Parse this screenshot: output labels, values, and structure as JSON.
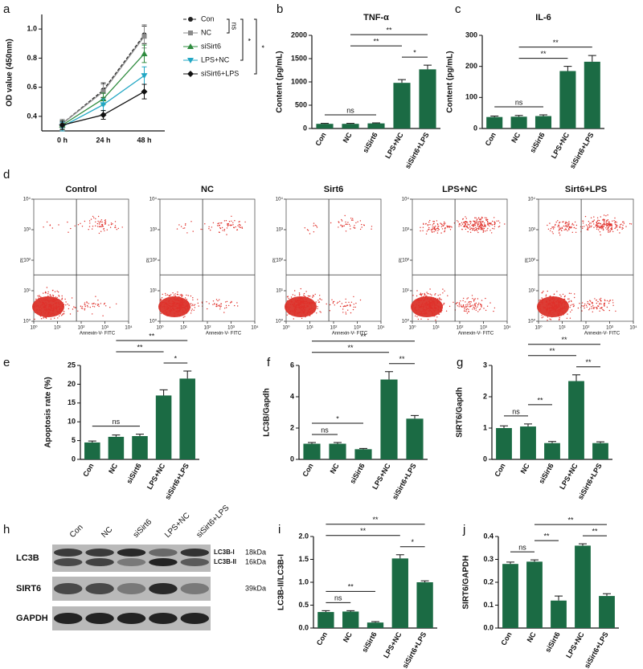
{
  "chart_data": [
    {
      "panel": "a",
      "type": "line",
      "categories": [
        "0 h",
        "24 h",
        "48 h"
      ],
      "ylabel": "OD value (450nm)",
      "ylim": [
        0.3,
        1.1
      ],
      "yticks": [
        0.4,
        0.6,
        0.8,
        {
          "value": 1,
          "label": "1.0"
        }
      ],
      "series": [
        {
          "name": "Con",
          "color": "#222222",
          "marker": "circle",
          "dashed": true,
          "values": [
            0.35,
            0.58,
            0.96
          ],
          "errors": [
            0.03,
            0.05,
            0.06
          ]
        },
        {
          "name": "NC",
          "color": "#8a8a8a",
          "marker": "square",
          "dashed": false,
          "values": [
            0.35,
            0.57,
            0.95
          ],
          "errors": [
            0.03,
            0.05,
            0.08
          ]
        },
        {
          "name": "siSirt6",
          "color": "#2e8b3e",
          "marker": "triangle",
          "dashed": false,
          "values": [
            0.34,
            0.52,
            0.83
          ],
          "errors": [
            0.03,
            0.04,
            0.06
          ]
        },
        {
          "name": "LPS+NC",
          "color": "#22a7c4",
          "marker": "triangle-down",
          "dashed": false,
          "values": [
            0.33,
            0.48,
            0.68
          ],
          "errors": [
            0.03,
            0.04,
            0.06
          ]
        },
        {
          "name": "siSirt6+LPS",
          "color": "#111111",
          "marker": "diamond",
          "dashed": false,
          "values": [
            0.34,
            0.41,
            0.57
          ],
          "errors": [
            0.03,
            0.03,
            0.05
          ]
        }
      ],
      "legend_annotations": [
        {
          "pair": [
            "Con",
            "NC"
          ],
          "label": "ns"
        },
        {
          "pair": [
            "Con",
            "LPS+NC"
          ],
          "label": "*"
        },
        {
          "pair": [
            "Con",
            "siSirt6+LPS"
          ],
          "label": "*"
        }
      ]
    },
    {
      "panel": "b",
      "type": "bar",
      "title": "TNF-α",
      "ylabel": "Content (pg/mL)",
      "color": "#1b6b44",
      "categories": [
        "Con",
        "NC",
        "siSirt6",
        "LPS+NC",
        "siSirt6+LPS"
      ],
      "values": [
        100,
        100,
        110,
        980,
        1270
      ],
      "errors": [
        10,
        10,
        10,
        70,
        90
      ],
      "ylim": [
        0,
        2000
      ],
      "yticks": [
        0,
        500,
        1000,
        1500,
        2000
      ],
      "comparisons": [
        {
          "pair": [
            "Con",
            "siSirt6"
          ],
          "label": "ns"
        },
        {
          "pair": [
            "LPS+NC",
            "siSirt6+LPS"
          ],
          "label": "*"
        },
        {
          "pair": [
            "NC",
            "LPS+NC"
          ],
          "label": "**"
        },
        {
          "pair": [
            "NC",
            "siSirt6+LPS"
          ],
          "label": "**"
        }
      ]
    },
    {
      "panel": "c",
      "type": "bar",
      "title": "IL-6",
      "ylabel": "Content (pg/mL)",
      "color": "#1b6b44",
      "categories": [
        "Con",
        "NC",
        "siSirt6",
        "LPS+NC",
        "siSirt6+LPS"
      ],
      "values": [
        37,
        38,
        40,
        185,
        215
      ],
      "errors": [
        3,
        4,
        4,
        15,
        20
      ],
      "ylim": [
        0,
        300
      ],
      "yticks": [
        0,
        100,
        200,
        300
      ],
      "comparisons": [
        {
          "pair": [
            "Con",
            "siSirt6"
          ],
          "label": "ns"
        },
        {
          "pair": [
            "NC",
            "LPS+NC"
          ],
          "label": "**"
        },
        {
          "pair": [
            "NC",
            "siSirt6+LPS"
          ],
          "label": "**"
        }
      ]
    },
    {
      "panel": "d",
      "type": "flow",
      "titles": [
        "Control",
        "NC",
        "Sirt6",
        "LPS+NC",
        "Sirt6+LPS"
      ],
      "xlabel": "Annexin-V- FITC",
      "ylabel": "PI",
      "log": true,
      "xlim": [
        1,
        10000
      ],
      "ylim": [
        1,
        10000
      ],
      "xticks": [
        {
          "value": 1,
          "label": "10⁰"
        },
        {
          "value": 10,
          "label": "10¹"
        },
        {
          "value": 100,
          "label": "10²"
        },
        {
          "value": 1000,
          "label": "10³"
        },
        {
          "value": 10000,
          "label": "10⁴"
        }
      ],
      "yticks": [
        {
          "value": 1,
          "label": "10⁰"
        },
        {
          "value": 10,
          "label": "10¹"
        },
        {
          "value": 100,
          "label": "10²"
        },
        {
          "value": 1000,
          "label": "10³"
        },
        {
          "value": 10000,
          "label": "10⁴"
        }
      ]
    },
    {
      "panel": "e",
      "type": "bar",
      "ylabel": "Apoptosis rate (%)",
      "color": "#1b6b44",
      "categories": [
        "Con",
        "NC",
        "siSirt6",
        "LPS+NC",
        "siSirt6+LPS"
      ],
      "values": [
        4.5,
        6,
        6.2,
        17,
        21.5
      ],
      "errors": [
        0.4,
        0.5,
        0.5,
        1.5,
        2
      ],
      "ylim": [
        0,
        25
      ],
      "yticks": [
        0,
        5,
        10,
        15,
        20,
        25
      ],
      "comparisons": [
        {
          "pair": [
            "Con",
            "siSirt6"
          ],
          "label": "ns"
        },
        {
          "pair": [
            "LPS+NC",
            "siSirt6+LPS"
          ],
          "label": "*"
        },
        {
          "pair": [
            "NC",
            "LPS+NC"
          ],
          "label": "**"
        },
        {
          "pair": [
            "NC",
            "siSirt6+LPS"
          ],
          "label": "**"
        }
      ]
    },
    {
      "panel": "f",
      "type": "bar",
      "ylabel": "LC3B/Gapdh",
      "color": "#1b6b44",
      "categories": [
        "Con",
        "NC",
        "siSirt6",
        "LPS+NC",
        "siSirt6+LPS"
      ],
      "values": [
        1,
        1,
        0.65,
        5.1,
        2.6
      ],
      "errors": [
        0.08,
        0.08,
        0.05,
        0.5,
        0.2
      ],
      "ylim": [
        0,
        6
      ],
      "yticks": [
        0,
        2,
        4,
        6
      ],
      "comparisons": [
        {
          "pair": [
            "Con",
            "NC"
          ],
          "label": "ns"
        },
        {
          "pair": [
            "Con",
            "siSirt6"
          ],
          "label": "*"
        },
        {
          "pair": [
            "LPS+NC",
            "siSirt6+LPS"
          ],
          "label": "**"
        },
        {
          "pair": [
            "Con",
            "LPS+NC"
          ],
          "label": "**"
        },
        {
          "pair": [
            "Con",
            "siSirt6+LPS"
          ],
          "label": "**"
        }
      ]
    },
    {
      "panel": "g",
      "type": "bar",
      "ylabel": "SIRT6/Gapdh",
      "color": "#1b6b44",
      "categories": [
        "Con",
        "NC",
        "siSirt6",
        "LPS+NC",
        "siSirt6+LPS"
      ],
      "values": [
        1,
        1.05,
        0.52,
        2.5,
        0.52
      ],
      "errors": [
        0.07,
        0.08,
        0.05,
        0.2,
        0.04
      ],
      "ylim": [
        0,
        3
      ],
      "yticks": [
        0,
        1,
        2,
        3
      ],
      "comparisons": [
        {
          "pair": [
            "Con",
            "NC"
          ],
          "label": "ns"
        },
        {
          "pair": [
            "NC",
            "siSirt6"
          ],
          "label": "**"
        },
        {
          "pair": [
            "LPS+NC",
            "siSirt6+LPS"
          ],
          "label": "**"
        },
        {
          "pair": [
            "NC",
            "LPS+NC"
          ],
          "label": "**"
        },
        {
          "pair": [
            "NC",
            "siSirt6+LPS"
          ],
          "label": "**"
        }
      ]
    },
    {
      "panel": "h",
      "type": "blot",
      "lanes": [
        "Con",
        "NC",
        "siSirt6",
        "LPS+NC",
        "siSirt6+LPS"
      ],
      "rows": [
        "LC3B",
        "SIRT6",
        "GAPDH"
      ],
      "band_labels": [
        "LC3B-I",
        "LC3B-II"
      ],
      "sizes": [
        "18kDa",
        "16kDa",
        "39kDa"
      ]
    },
    {
      "panel": "i",
      "type": "bar",
      "ylabel": "LC3B-II/LC3B-I",
      "color": "#1b6b44",
      "categories": [
        "Con",
        "NC",
        "siSirt6",
        "LPS+NC",
        "siSirt6+LPS"
      ],
      "values": [
        0.35,
        0.36,
        0.12,
        1.52,
        1.0
      ],
      "errors": [
        0.03,
        0.02,
        0.02,
        0.08,
        0.03
      ],
      "ylim": [
        0,
        2
      ],
      "yticks": [
        {
          "value": 0,
          "label": "0.0"
        },
        0.5,
        {
          "value": 1,
          "label": "1.0"
        },
        1.5,
        {
          "value": 2,
          "label": "2.0"
        }
      ],
      "comparisons": [
        {
          "pair": [
            "Con",
            "NC"
          ],
          "label": "ns"
        },
        {
          "pair": [
            "Con",
            "siSirt6"
          ],
          "label": "**"
        },
        {
          "pair": [
            "LPS+NC",
            "siSirt6+LPS"
          ],
          "label": "*"
        },
        {
          "pair": [
            "Con",
            "LPS+NC"
          ],
          "label": "**"
        },
        {
          "pair": [
            "Con",
            "siSirt6+LPS"
          ],
          "label": "**"
        }
      ]
    },
    {
      "panel": "j",
      "type": "bar",
      "ylabel": "SIRT6/GAPDH",
      "color": "#1b6b44",
      "categories": [
        "Con",
        "NC",
        "siSirt6",
        "LPS+NC",
        "siSirt6+LPS"
      ],
      "values": [
        0.28,
        0.29,
        0.12,
        0.36,
        0.14
      ],
      "errors": [
        0.008,
        0.008,
        0.02,
        0.008,
        0.01
      ],
      "ylim": [
        0,
        0.4
      ],
      "yticks": [
        {
          "value": 0,
          "label": "0.0"
        },
        0.1,
        0.2,
        0.3,
        0.4
      ],
      "comparisons": [
        {
          "pair": [
            "Con",
            "NC"
          ],
          "label": "ns"
        },
        {
          "pair": [
            "NC",
            "siSirt6"
          ],
          "label": "**"
        },
        {
          "pair": [
            "LPS+NC",
            "siSirt6+LPS"
          ],
          "label": "**"
        },
        {
          "pair": [
            "NC",
            "siSirt6+LPS"
          ],
          "label": "**"
        }
      ]
    }
  ]
}
